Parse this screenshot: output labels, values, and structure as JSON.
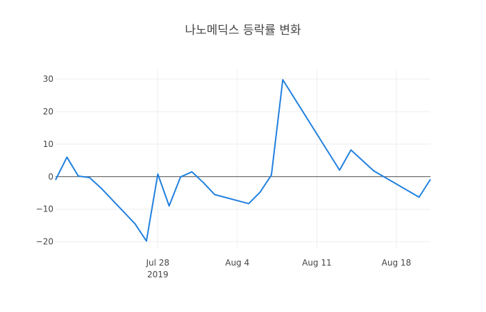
{
  "chart_data": {
    "type": "line",
    "title": "나노메딕스 등락률 변화",
    "xlabel": "",
    "ylabel": "",
    "x_is_date": true,
    "xlim": [
      "2019-07-19",
      "2019-08-21"
    ],
    "ylim": [
      -22,
      33
    ],
    "y_ticks": [
      30,
      20,
      10,
      0,
      -10,
      -20
    ],
    "y_tick_labels": [
      "30",
      "20",
      "10",
      "0",
      "−10",
      "−20"
    ],
    "x_ticks": [
      {
        "date": "2019-07-28",
        "label": "Jul 28",
        "sublabel": "2019"
      },
      {
        "date": "2019-08-04",
        "label": "Aug 4",
        "sublabel": ""
      },
      {
        "date": "2019-08-11",
        "label": "Aug 11",
        "sublabel": ""
      },
      {
        "date": "2019-08-18",
        "label": "Aug 18",
        "sublabel": ""
      }
    ],
    "grid": true,
    "series": [
      {
        "color": "#1f7fde",
        "x": [
          "2019-07-19",
          "2019-07-20",
          "2019-07-21",
          "2019-07-22",
          "2019-07-23",
          "2019-07-26",
          "2019-07-27",
          "2019-07-28",
          "2019-07-29",
          "2019-07-30",
          "2019-07-31",
          "2019-08-01",
          "2019-08-02",
          "2019-08-05",
          "2019-08-06",
          "2019-08-07",
          "2019-08-08",
          "2019-08-13",
          "2019-08-14",
          "2019-08-16",
          "2019-08-20",
          "2019-08-21"
        ],
        "values": [
          -1,
          6,
          0.2,
          -0.3,
          -3.5,
          -14.5,
          -19.8,
          0.8,
          -9,
          -0.1,
          1.5,
          -1.8,
          -5.5,
          -8.3,
          -4.8,
          0.5,
          29.8,
          2,
          8.2,
          1.8,
          -6.3,
          -0.8
        ]
      }
    ]
  }
}
